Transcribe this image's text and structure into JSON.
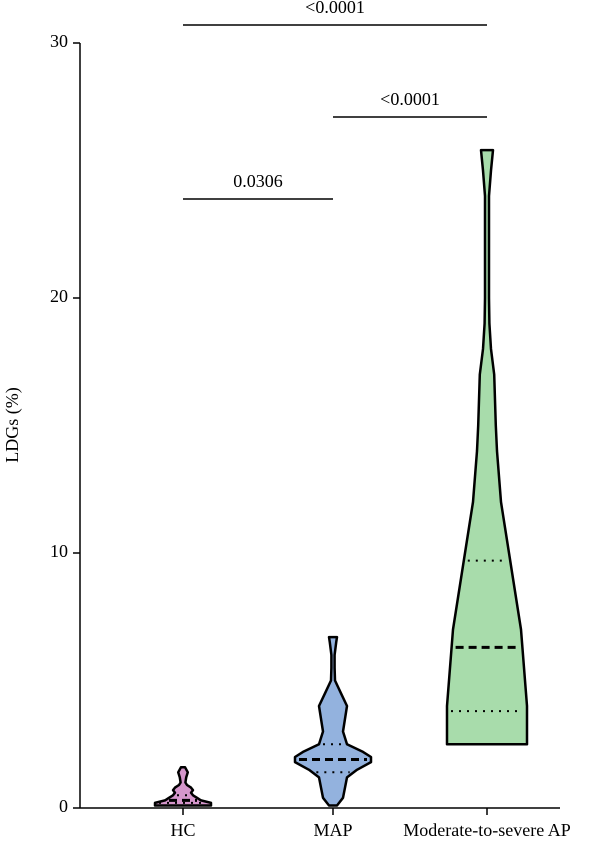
{
  "chart_data": {
    "type": "violin",
    "y_label": "LDGs (%)",
    "categories": [
      "HC",
      "MAP",
      "Moderate-to-severe AP"
    ],
    "ylim": [
      0,
      30
    ],
    "yticks": [
      0,
      10,
      20,
      30
    ],
    "series": [
      {
        "name": "HC",
        "color": "#d596cb",
        "q1": 0.2,
        "median": 0.3,
        "q3": 0.5,
        "profile_y": [
          0.1,
          0.15,
          0.2,
          0.3,
          0.4,
          0.5,
          0.6,
          0.7,
          0.8,
          0.9,
          1.0,
          1.2,
          1.4,
          1.6
        ],
        "profile_density": [
          0.7,
          0.7,
          0.7,
          0.45,
          0.35,
          0.25,
          0.2,
          0.25,
          0.2,
          0.1,
          0.06,
          0.08,
          0.12,
          0.05
        ]
      },
      {
        "name": "MAP",
        "color": "#93b2de",
        "q1": 1.4,
        "median": 1.9,
        "q3": 2.5,
        "profile_y": [
          0.1,
          0.4,
          0.8,
          1.2,
          1.5,
          1.8,
          2.0,
          2.2,
          2.5,
          3.0,
          3.5,
          4.0,
          4.5,
          5.0,
          5.5,
          6.0,
          6.5,
          6.7
        ],
        "profile_density": [
          0.1,
          0.25,
          0.3,
          0.35,
          0.6,
          0.95,
          0.95,
          0.75,
          0.35,
          0.25,
          0.3,
          0.35,
          0.2,
          0.05,
          0.04,
          0.04,
          0.08,
          0.1
        ]
      },
      {
        "name": "Moderate-to-severe AP",
        "color": "#a8dcab",
        "q1": 3.8,
        "median": 6.3,
        "q3": 9.7,
        "profile_y": [
          2.5,
          3,
          4,
          5,
          6,
          7,
          8,
          9,
          10,
          11,
          12,
          13,
          14,
          15,
          16,
          17,
          18,
          19,
          20,
          22,
          24,
          25,
          25.8
        ],
        "profile_density": [
          1,
          1,
          1,
          0.95,
          0.9,
          0.85,
          0.75,
          0.65,
          0.55,
          0.45,
          0.35,
          0.3,
          0.25,
          0.22,
          0.2,
          0.18,
          0.1,
          0.06,
          0.05,
          0.05,
          0.05,
          0.1,
          0.15
        ]
      }
    ],
    "comparisons": [
      {
        "pair": [
          "HC",
          "Moderate-to-severe AP"
        ],
        "label": "<0.0001"
      },
      {
        "pair": [
          "MAP",
          "Moderate-to-severe AP"
        ],
        "label": "<0.0001"
      },
      {
        "pair": [
          "HC",
          "MAP"
        ],
        "label": "0.0306"
      }
    ]
  }
}
